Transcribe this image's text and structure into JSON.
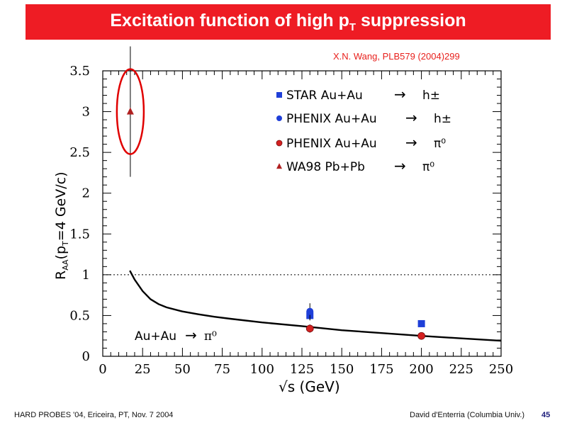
{
  "slide": {
    "title_main": "Excitation function of high p",
    "title_sub": "T",
    "title_end": " suppression",
    "citation": "X.N. Wang, PLB579 (2004)299",
    "footer_left": "HARD PROBES '04, Ericeira, PT, Nov. 7 2004",
    "footer_right": "David d'Enterria (Columbia Univ.)",
    "slide_number": "45"
  },
  "colors": {
    "title_bg": "#ee1c24",
    "title_text": "#ffffff",
    "citation": "#e8201c",
    "star": "#1f3fd8",
    "phenix_h": "#1f3fd8",
    "phenix_pi0": "#d42020",
    "wa98": "#b02020",
    "highlight_ellipse": "#e00000"
  },
  "chart_data": {
    "type": "scatter",
    "xlabel_main": "√s",
    "xlabel_unit": " (GeV)",
    "ylabel_main": "R",
    "ylabel_sub": "AA",
    "ylabel_rest": "(p",
    "ylabel_sub2": "T",
    "ylabel_end": "=4 GeV/c)",
    "xlim": [
      0,
      250
    ],
    "ylim": [
      0,
      3.5
    ],
    "xticks": [
      0,
      25,
      50,
      75,
      100,
      125,
      150,
      175,
      200,
      225,
      250
    ],
    "xtick_labels": [
      "0",
      "25",
      "50",
      "75",
      "100",
      "125",
      "150",
      "175",
      "200",
      "225",
      "250"
    ],
    "yticks": [
      0,
      0.5,
      1,
      1.5,
      2,
      2.5,
      3,
      3.5
    ],
    "ytick_labels": [
      "0",
      "0.5",
      "1",
      "1.5",
      "2",
      "2.5",
      "3",
      "3.5"
    ],
    "reference_line": 1,
    "curve_label_main": "Au+Au",
    "curve_label_arrow": "→",
    "curve_label_particle": "π⁰",
    "curve": {
      "x": [
        17,
        20,
        25,
        30,
        35,
        40,
        50,
        60,
        70,
        80,
        100,
        125,
        150,
        175,
        200,
        225,
        250
      ],
      "y": [
        1.05,
        0.94,
        0.8,
        0.7,
        0.64,
        0.6,
        0.55,
        0.515,
        0.485,
        0.46,
        0.415,
        0.37,
        0.32,
        0.285,
        0.25,
        0.22,
        0.19
      ]
    },
    "legend": [
      {
        "marker": "square",
        "label": "STAR Au+Au",
        "arrow": "→",
        "particle": "h±"
      },
      {
        "marker": "circle-blue",
        "label": "PHENIX Au+Au",
        "arrow": "→",
        "particle": "h±"
      },
      {
        "marker": "circle-red",
        "label": "PHENIX Au+Au",
        "arrow": "→",
        "particle": "π⁰"
      },
      {
        "marker": "triangle",
        "label": "WA98 Pb+Pb",
        "arrow": "→",
        "particle": "π⁰"
      }
    ],
    "series": [
      {
        "name": "STAR Au+Au → h±",
        "marker": "square",
        "points": [
          {
            "x": 130,
            "y": 0.5,
            "yerr": 0.06
          },
          {
            "x": 200,
            "y": 0.4,
            "yerr": 0.03
          }
        ]
      },
      {
        "name": "PHENIX Au+Au → h±",
        "marker": "circle-blue",
        "points": [
          {
            "x": 130,
            "y": 0.55,
            "yerr": 0.1
          }
        ]
      },
      {
        "name": "PHENIX Au+Au → π⁰",
        "marker": "circle-red",
        "points": [
          {
            "x": 130,
            "y": 0.34,
            "yerr": 0.05
          },
          {
            "x": 200,
            "y": 0.25,
            "yerr": 0.03
          }
        ]
      },
      {
        "name": "WA98 Pb+Pb → π⁰",
        "marker": "triangle",
        "points": [
          {
            "x": 17.3,
            "y": 3.0,
            "yerr": 0.8
          }
        ]
      }
    ],
    "highlight": {
      "x": 17.3,
      "y": 3.0
    }
  }
}
